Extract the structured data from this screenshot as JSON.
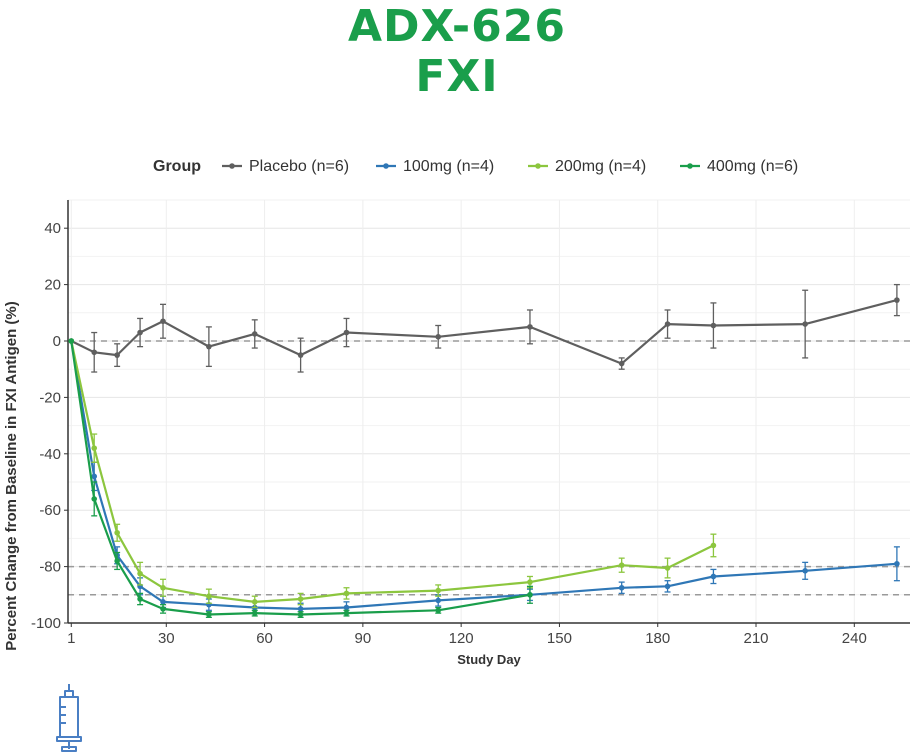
{
  "header": {
    "title_line1": "ADX-626",
    "title_line2": "FXI"
  },
  "icons": {
    "syringe": "syringe-icon",
    "syringe_color": "#4a7fc4"
  },
  "chart_data": {
    "type": "line",
    "xlabel": "Study Day",
    "ylabel": "Percent Change from Baseline in FXI Antigen (%)",
    "legend_title": "Group",
    "legend_placement": "top",
    "x_ticks": [
      1,
      30,
      60,
      90,
      120,
      150,
      180,
      210,
      240
    ],
    "y_ticks": [
      40,
      20,
      0,
      -20,
      -40,
      -60,
      -80,
      -100
    ],
    "xlim": [
      0,
      257
    ],
    "ylim": [
      -100,
      50
    ],
    "grid": true,
    "reference_lines": [
      0,
      -80,
      -90
    ],
    "series": [
      {
        "name": "Placebo (n=6)",
        "color": "#5f5f5f",
        "points": [
          {
            "x": 1,
            "y": 0,
            "err": 0
          },
          {
            "x": 8,
            "y": -4,
            "err": 7
          },
          {
            "x": 15,
            "y": -5,
            "err": 4
          },
          {
            "x": 22,
            "y": 3,
            "err": 5
          },
          {
            "x": 29,
            "y": 7,
            "err": 6
          },
          {
            "x": 43,
            "y": -2,
            "err": 7
          },
          {
            "x": 57,
            "y": 2.5,
            "err": 5
          },
          {
            "x": 71,
            "y": -5,
            "err": 6
          },
          {
            "x": 85,
            "y": 3,
            "err": 5
          },
          {
            "x": 113,
            "y": 1.5,
            "err": 4
          },
          {
            "x": 141,
            "y": 5,
            "err": 6
          },
          {
            "x": 169,
            "y": -8,
            "err": 2
          },
          {
            "x": 183,
            "y": 6,
            "err": 5
          },
          {
            "x": 197,
            "y": 5.5,
            "err": 8
          },
          {
            "x": 225,
            "y": 6,
            "err": 12
          },
          {
            "x": 253,
            "y": 14.5,
            "err": 5.5
          }
        ]
      },
      {
        "name": "100mg (n=4)",
        "color": "#2f77b6",
        "points": [
          {
            "x": 1,
            "y": 0,
            "err": 0
          },
          {
            "x": 8,
            "y": -48,
            "err": 5
          },
          {
            "x": 15,
            "y": -76,
            "err": 3
          },
          {
            "x": 22,
            "y": -87,
            "err": 3
          },
          {
            "x": 29,
            "y": -92.5,
            "err": 2
          },
          {
            "x": 43,
            "y": -93.5,
            "err": 2
          },
          {
            "x": 57,
            "y": -94.5,
            "err": 2
          },
          {
            "x": 71,
            "y": -95,
            "err": 2
          },
          {
            "x": 85,
            "y": -94.5,
            "err": 2
          },
          {
            "x": 113,
            "y": -92,
            "err": 2
          },
          {
            "x": 141,
            "y": -90,
            "err": 2
          },
          {
            "x": 169,
            "y": -87.5,
            "err": 2
          },
          {
            "x": 183,
            "y": -87,
            "err": 2
          },
          {
            "x": 197,
            "y": -83.5,
            "err": 2.5
          },
          {
            "x": 225,
            "y": -81.5,
            "err": 3
          },
          {
            "x": 253,
            "y": -79,
            "err": 6
          }
        ]
      },
      {
        "name": "200mg (n=4)",
        "color": "#8cc63e",
        "points": [
          {
            "x": 1,
            "y": 0,
            "err": 0
          },
          {
            "x": 8,
            "y": -38,
            "err": 5
          },
          {
            "x": 15,
            "y": -68,
            "err": 3
          },
          {
            "x": 22,
            "y": -82.5,
            "err": 4
          },
          {
            "x": 29,
            "y": -87.5,
            "err": 3
          },
          {
            "x": 43,
            "y": -90.5,
            "err": 2.5
          },
          {
            "x": 57,
            "y": -92.5,
            "err": 2
          },
          {
            "x": 71,
            "y": -91.5,
            "err": 2
          },
          {
            "x": 85,
            "y": -89.5,
            "err": 2
          },
          {
            "x": 113,
            "y": -88.5,
            "err": 2
          },
          {
            "x": 141,
            "y": -85.5,
            "err": 2
          },
          {
            "x": 169,
            "y": -79.5,
            "err": 2.5
          },
          {
            "x": 183,
            "y": -80.5,
            "err": 3.5
          },
          {
            "x": 197,
            "y": -72.5,
            "err": 4
          }
        ]
      },
      {
        "name": "400mg (n=6)",
        "color": "#1a9e4b",
        "points": [
          {
            "x": 1,
            "y": 0,
            "err": 0
          },
          {
            "x": 8,
            "y": -56,
            "err": 6
          },
          {
            "x": 15,
            "y": -78,
            "err": 3
          },
          {
            "x": 22,
            "y": -91.5,
            "err": 2
          },
          {
            "x": 29,
            "y": -95,
            "err": 1.5
          },
          {
            "x": 43,
            "y": -97,
            "err": 1
          },
          {
            "x": 57,
            "y": -96.5,
            "err": 1
          },
          {
            "x": 71,
            "y": -97,
            "err": 1
          },
          {
            "x": 85,
            "y": -96.5,
            "err": 1
          },
          {
            "x": 113,
            "y": -95.5,
            "err": 1
          },
          {
            "x": 141,
            "y": -90,
            "err": 3
          }
        ]
      }
    ]
  }
}
